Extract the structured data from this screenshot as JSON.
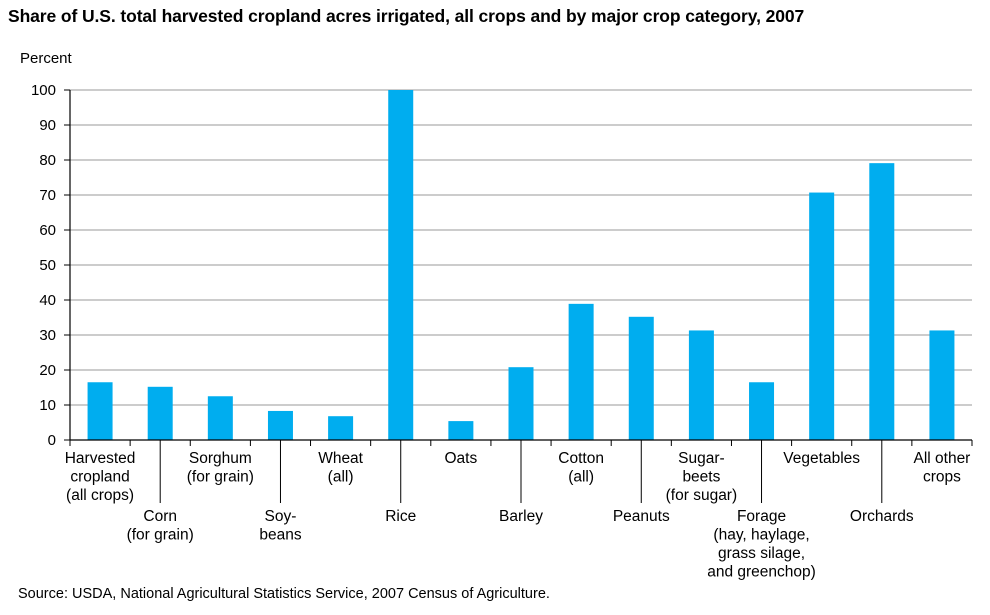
{
  "chart_data": {
    "type": "bar",
    "title": "Share of U.S. total harvested cropland acres irrigated, all crops and by major crop category, 2007",
    "ylabel": "Percent",
    "xlabel": "",
    "ylim": [
      0,
      100
    ],
    "yticks": [
      0,
      10,
      20,
      30,
      40,
      50,
      60,
      70,
      80,
      90,
      100
    ],
    "grid": true,
    "legend": "none",
    "bar_color": "#00adef",
    "categories": [
      {
        "label": [
          "Harvested",
          "cropland",
          "(all crops)"
        ],
        "row": "upper",
        "value": 16.5
      },
      {
        "label": [
          "Corn",
          "(for grain)"
        ],
        "row": "lower",
        "value": 15.2
      },
      {
        "label": [
          "Sorghum",
          "(for grain)"
        ],
        "row": "upper",
        "value": 12.5
      },
      {
        "label": [
          "Soy-",
          "beans"
        ],
        "row": "lower",
        "value": 8.3
      },
      {
        "label": [
          "Wheat",
          "(all)"
        ],
        "row": "upper",
        "value": 6.8
      },
      {
        "label": [
          "Rice"
        ],
        "row": "lower",
        "value": 100
      },
      {
        "label": [
          "Oats"
        ],
        "row": "upper",
        "value": 5.4
      },
      {
        "label": [
          "Barley"
        ],
        "row": "lower",
        "value": 20.8
      },
      {
        "label": [
          "Cotton",
          "(all)"
        ],
        "row": "upper",
        "value": 38.9
      },
      {
        "label": [
          "Peanuts"
        ],
        "row": "lower",
        "value": 35.2
      },
      {
        "label": [
          "Sugar-",
          "beets",
          "(for sugar)"
        ],
        "row": "upper",
        "value": 31.3
      },
      {
        "label": [
          "Forage",
          "(hay, haylage,",
          "grass silage,",
          "and greenchop)"
        ],
        "row": "lower",
        "value": 16.5
      },
      {
        "label": [
          "Vegetables"
        ],
        "row": "upper",
        "value": 70.7
      },
      {
        "label": [
          "Orchards"
        ],
        "row": "lower",
        "value": 79.1
      },
      {
        "label": [
          "All other",
          "crops"
        ],
        "row": "upper",
        "value": 31.3
      }
    ]
  },
  "source": "Source: USDA, National Agricultural Statistics Service, 2007 Census of Agriculture."
}
